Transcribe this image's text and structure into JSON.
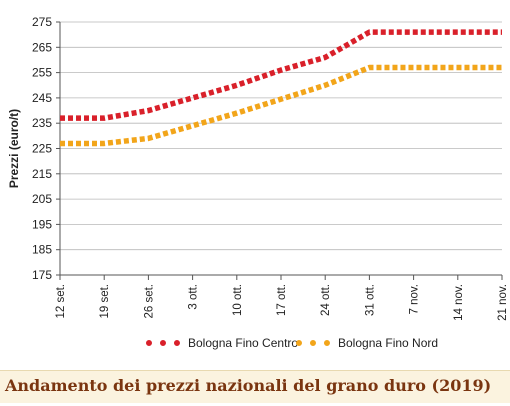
{
  "chart_data": {
    "type": "line",
    "ylabel": "Prezzi (euro/t)",
    "xlabel": "",
    "ylim": [
      175,
      275
    ],
    "yticks": [
      175,
      185,
      195,
      205,
      215,
      225,
      235,
      245,
      255,
      265,
      275
    ],
    "categories": [
      "12 set.",
      "19 set.",
      "26 set.",
      "3 ott.",
      "10 ott.",
      "17 ott.",
      "24 ott.",
      "31 ott.",
      "7 nov.",
      "14 nov.",
      "21 nov."
    ],
    "grid": "horizontal",
    "legend_position": "bottom",
    "series": [
      {
        "name": "Bologna Fino Centro",
        "color": "#d9202a",
        "values": [
          237,
          237,
          240,
          245,
          250,
          256,
          261,
          271,
          271,
          271,
          271
        ]
      },
      {
        "name": "Bologna Fino Nord",
        "color": "#f2a51a",
        "values": [
          227,
          227,
          229,
          234,
          239,
          244.5,
          250,
          257,
          257,
          257,
          257
        ]
      }
    ]
  },
  "caption": "Andamento dei prezzi nazionali del grano duro (2019)"
}
